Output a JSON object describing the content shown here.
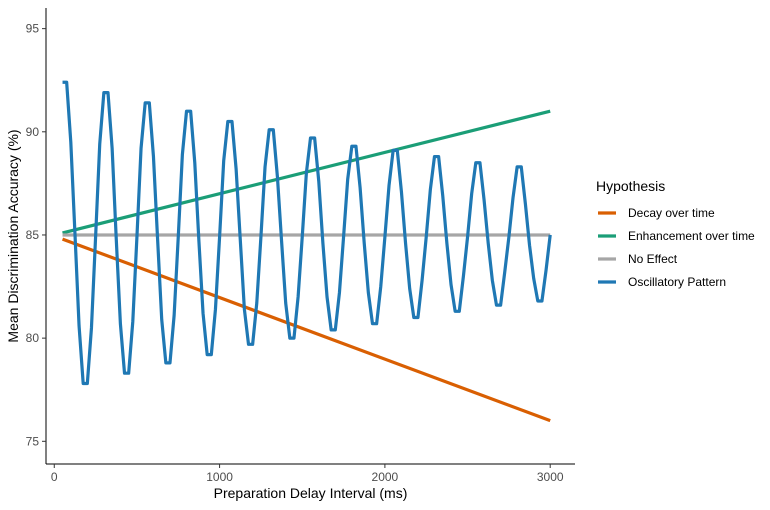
{
  "chart_data": {
    "type": "line",
    "title": "",
    "xlabel": "Preparation Delay Interval (ms)",
    "ylabel": "Mean Discrimination Accuracy (%)",
    "xlim": [
      -50,
      3150
    ],
    "ylim": [
      73.9,
      96
    ],
    "x_ticks": [
      0,
      1000,
      2000,
      3000
    ],
    "x_tick_labels": [
      "0",
      "1000",
      "2000",
      "3000"
    ],
    "y_ticks": [
      75,
      80,
      85,
      90,
      95
    ],
    "y_tick_labels": [
      "75",
      "80",
      "85",
      "90",
      "95"
    ],
    "grid": false,
    "legend": {
      "title": "Hypothesis",
      "placement": "right"
    },
    "series": [
      {
        "name": "Decay over time",
        "color": "#D95F02",
        "x": [
          50,
          3000
        ],
        "y": [
          84.8,
          76.0
        ]
      },
      {
        "name": "Enhancement over time",
        "color": "#1B9E77",
        "x": [
          50,
          3000
        ],
        "y": [
          85.1,
          91.0
        ]
      },
      {
        "name": "No Effect",
        "color": "#A6A6A6",
        "x": [
          50,
          3000
        ],
        "y": [
          85.0,
          85.0
        ]
      },
      {
        "name": "Oscillatory Pattern",
        "color": "#1F78B4",
        "x": [
          50,
          75,
          100,
          125,
          150,
          175,
          200,
          225,
          250,
          275,
          300,
          325,
          350,
          375,
          400,
          425,
          450,
          475,
          500,
          525,
          550,
          575,
          600,
          625,
          650,
          675,
          700,
          725,
          750,
          775,
          800,
          825,
          850,
          875,
          900,
          925,
          950,
          975,
          1000,
          1025,
          1050,
          1075,
          1100,
          1125,
          1150,
          1175,
          1200,
          1225,
          1250,
          1275,
          1300,
          1325,
          1350,
          1375,
          1400,
          1425,
          1450,
          1475,
          1500,
          1525,
          1550,
          1575,
          1600,
          1625,
          1650,
          1675,
          1700,
          1725,
          1750,
          1775,
          1800,
          1825,
          1850,
          1875,
          1900,
          1925,
          1950,
          1975,
          2000,
          2025,
          2050,
          2075,
          2100,
          2125,
          2150,
          2175,
          2200,
          2225,
          2250,
          2275,
          2300,
          2325,
          2350,
          2375,
          2400,
          2425,
          2450,
          2475,
          2500,
          2525,
          2550,
          2575,
          2600,
          2625,
          2650,
          2675,
          2700,
          2725,
          2750,
          2775,
          2800,
          2825,
          2850,
          2875,
          2900,
          2925,
          2950,
          2975,
          3000
        ],
        "y": [
          92.4,
          92.4,
          89.5,
          85.1,
          80.6,
          77.8,
          77.8,
          80.5,
          84.9,
          89.4,
          91.9,
          91.9,
          89.2,
          84.8,
          80.7,
          78.3,
          78.3,
          80.8,
          84.9,
          89.2,
          91.4,
          91.4,
          88.8,
          84.8,
          80.9,
          78.8,
          78.8,
          81.1,
          84.9,
          88.9,
          91.0,
          91.0,
          88.5,
          84.7,
          81.2,
          79.2,
          79.2,
          81.4,
          84.9,
          88.6,
          90.5,
          90.5,
          88.2,
          84.8,
          81.4,
          79.7,
          79.7,
          81.7,
          84.9,
          88.3,
          90.1,
          90.1,
          87.8,
          84.7,
          81.7,
          80.0,
          80.0,
          82.0,
          84.9,
          88.0,
          89.7,
          89.7,
          87.6,
          84.6,
          82.0,
          80.4,
          80.4,
          82.2,
          84.9,
          87.7,
          89.3,
          89.3,
          87.3,
          84.6,
          82.2,
          80.7,
          80.7,
          82.5,
          84.9,
          87.4,
          89.1,
          89.1,
          87.1,
          84.6,
          82.4,
          81.0,
          81.0,
          82.8,
          84.9,
          87.2,
          88.8,
          88.8,
          86.9,
          84.6,
          82.6,
          81.3,
          81.3,
          83.0,
          84.9,
          87.0,
          88.5,
          88.5,
          86.7,
          84.6,
          82.8,
          81.6,
          81.6,
          83.2,
          84.9,
          86.8,
          88.3,
          88.3,
          86.5,
          84.5,
          82.9,
          81.8,
          81.8,
          83.3,
          85.0
        ]
      }
    ]
  }
}
